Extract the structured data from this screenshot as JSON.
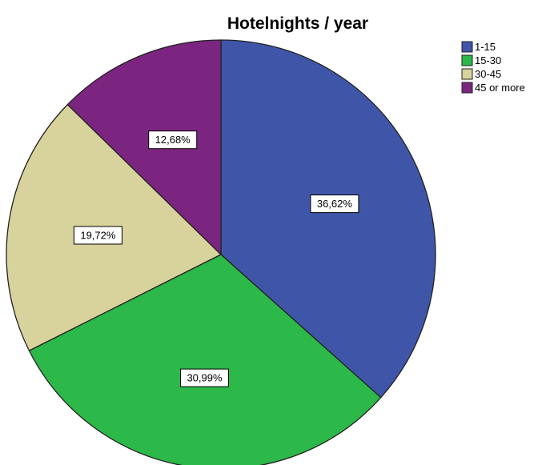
{
  "chart_data": {
    "type": "pie",
    "title": "Hotelnights / year",
    "categories": [
      "1-15",
      "15-30",
      "30-45",
      "45 or more"
    ],
    "values": [
      36.62,
      30.99,
      19.72,
      12.68
    ],
    "data_labels": [
      "36,62%",
      "30,99%",
      "19,72%",
      "12,68%"
    ],
    "colors": [
      "#3f56a8",
      "#2db84a",
      "#d8d29c",
      "#7b2580"
    ],
    "legend_position": "top-right",
    "start_direction": "top",
    "direction": "clockwise"
  }
}
